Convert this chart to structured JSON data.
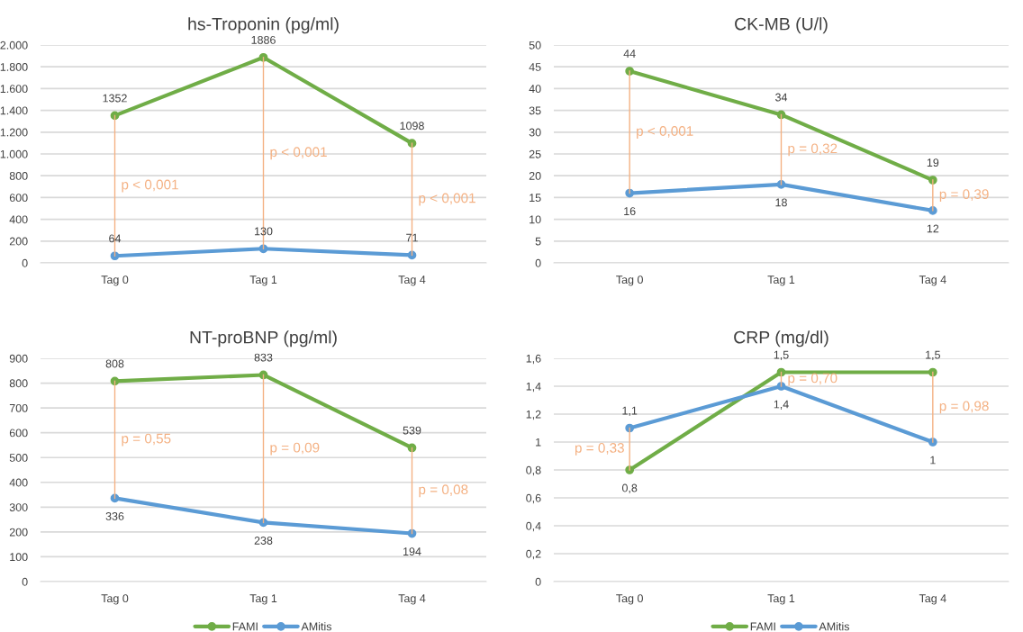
{
  "chart_data": [
    {
      "type": "line",
      "title": "hs-Troponin (pg/ml)",
      "categories": [
        "Tag 0",
        "Tag 1",
        "Tag 4"
      ],
      "series": [
        {
          "name": "FAMI",
          "color": "#70ad47",
          "values": [
            1352,
            1886,
            1098
          ],
          "value_labels": [
            "1352",
            "1886",
            "1098"
          ],
          "errors": [
            [
              64,
              1352
            ],
            [
              130,
              1886
            ],
            [
              71,
              1098
            ]
          ]
        },
        {
          "name": "AMitis",
          "color": "#5b9bd5",
          "values": [
            64,
            130,
            71
          ],
          "value_labels": [
            "64",
            "130",
            "71"
          ]
        }
      ],
      "ylim": [
        0,
        2000
      ],
      "yticks": [
        0,
        200,
        400,
        600,
        800,
        {
          "value": 1000,
          "label": "1.000"
        },
        {
          "value": 1200,
          "label": "1.200"
        },
        {
          "value": 1400,
          "label": "1.400"
        },
        {
          "value": 1600,
          "label": "1.600"
        },
        {
          "value": 1800,
          "label": "1.800"
        },
        {
          "value": 2000,
          "label": "2.000"
        }
      ],
      "grid": "y",
      "marker": "circle",
      "line_style": "solid",
      "legend": "bottom",
      "annotations": [
        "p < 0,001",
        "p < 0,001",
        "p < 0,001"
      ]
    },
    {
      "type": "line",
      "title": "CK-MB (U/l)",
      "categories": [
        "Tag 0",
        "Tag 1",
        "Tag 4"
      ],
      "series": [
        {
          "name": "FAMI",
          "color": "#70ad47",
          "values": [
            44,
            34,
            19
          ],
          "value_labels": [
            "44",
            "34",
            "19"
          ],
          "errors": [
            [
              16,
              44
            ],
            [
              18,
              34
            ],
            [
              12,
              19
            ]
          ]
        },
        {
          "name": "AMitis",
          "color": "#5b9bd5",
          "values": [
            16,
            18,
            12
          ],
          "value_labels": [
            "16",
            "18",
            "12"
          ]
        }
      ],
      "ylim": [
        0,
        50
      ],
      "yticks": [
        0,
        5,
        10,
        15,
        20,
        25,
        30,
        35,
        40,
        45,
        50
      ],
      "grid": "y",
      "marker": "circle",
      "line_style": "solid",
      "legend": "bottom",
      "annotations": [
        "p < 0,001",
        "p = 0,32",
        "p = 0,39"
      ]
    },
    {
      "type": "line",
      "title": "NT-proBNP (pg/ml)",
      "categories": [
        "Tag 0",
        "Tag 1",
        "Tag 4"
      ],
      "series": [
        {
          "color": "#70ad47",
          "values": [
            808,
            833,
            539
          ],
          "value_labels": [
            "808",
            "833",
            "539"
          ],
          "errors": [
            [
              336,
              808
            ],
            [
              238,
              833
            ],
            [
              194,
              539
            ]
          ]
        },
        {
          "color": "#5b9bd5",
          "values": [
            336,
            238,
            194
          ],
          "value_labels": [
            "336",
            "238",
            "194"
          ]
        }
      ],
      "ylim": [
        0,
        900
      ],
      "yticks": [
        0,
        100,
        200,
        300,
        400,
        500,
        600,
        700,
        800,
        900
      ],
      "grid": "y",
      "marker": "circle",
      "line_style": "solid",
      "annotations": [
        "p = 0,55",
        "p = 0,09",
        "p = 0,08"
      ]
    },
    {
      "type": "line",
      "title": "CRP (mg/dl)",
      "categories": [
        "Tag 0",
        "Tag 1",
        "Tag 4"
      ],
      "series": [
        {
          "color": "#70ad47",
          "values": [
            0.8,
            1.5,
            1.5
          ],
          "value_labels": [
            "0,8",
            "1,5",
            "1,5"
          ],
          "errors": [
            [
              0.8,
              1.1
            ],
            [
              1.4,
              1.5
            ],
            [
              1.0,
              1.5
            ]
          ]
        },
        {
          "color": "#5b9bd5",
          "values": [
            1.1,
            1.4,
            1.0
          ],
          "value_labels": [
            "1,1",
            "1,4",
            "1"
          ]
        }
      ],
      "ylim": [
        0,
        1.6
      ],
      "yticks": [
        0,
        {
          "value": 0.2,
          "label": "0,2"
        },
        {
          "value": 0.4,
          "label": "0,4"
        },
        {
          "value": 0.6,
          "label": "0,6"
        },
        {
          "value": 0.8,
          "label": "0,8"
        },
        1,
        {
          "value": 1.2,
          "label": "1,2"
        },
        {
          "value": 1.4,
          "label": "1,4"
        },
        {
          "value": 1.6,
          "label": "1,6"
        }
      ],
      "grid": "y",
      "marker": "circle",
      "line_style": "solid",
      "annotations": [
        "p = 0,33",
        "p = 0,70",
        "p = 0,98"
      ]
    }
  ]
}
